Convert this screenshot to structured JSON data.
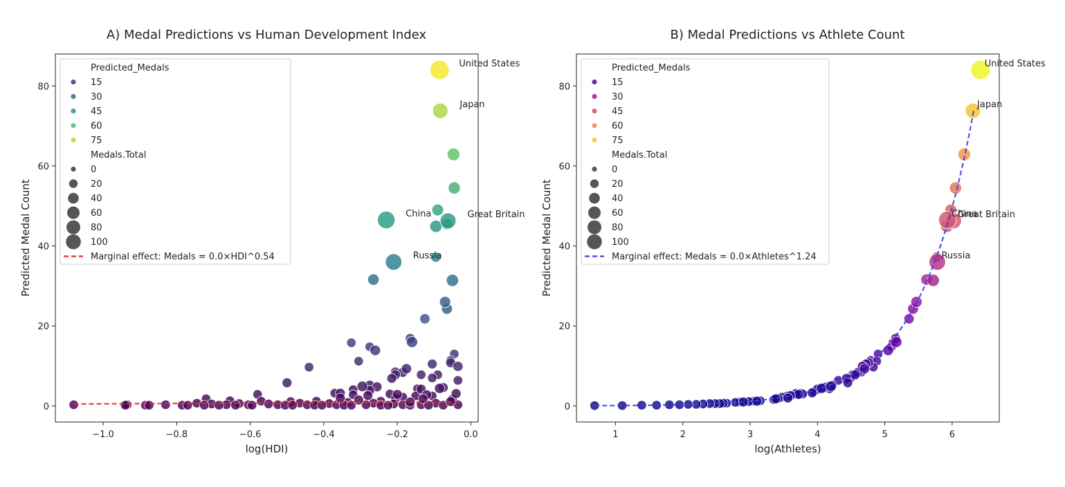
{
  "chart_data": [
    {
      "type": "scatter",
      "title": "A) Medal Predictions vs Human Development Index",
      "xlabel": "log(HDI)",
      "ylabel": "Predicted Medal Count",
      "xlim": [
        -1.13,
        0.02
      ],
      "ylim": [
        -4,
        88
      ],
      "x_ticks": [
        -1.0,
        -0.8,
        -0.6,
        -0.4,
        -0.2,
        0.0
      ],
      "x_tick_labels": [
        "−1.0",
        "−0.8",
        "−0.6",
        "−0.4",
        "−0.2",
        "0.0"
      ],
      "y_ticks": [
        0,
        20,
        40,
        60,
        80
      ],
      "y_tick_labels": [
        "0",
        "20",
        "40",
        "60",
        "80"
      ],
      "palette": "viridis",
      "legend": {
        "placement": "upper-left",
        "hue_title": "Predicted_Medals",
        "hue_levels": [
          15,
          30,
          45,
          60,
          75
        ],
        "hue_labels": [
          "15",
          "30",
          "45",
          "60",
          "75"
        ],
        "size_title": "Medals.Total",
        "size_levels": [
          0,
          20,
          40,
          60,
          80,
          100
        ],
        "size_labels": [
          "0",
          "20",
          "40",
          "60",
          "80",
          "100"
        ],
        "fit_label": "Marginal effect: Medals = 0.0×HDI^0.54"
      },
      "fit": {
        "style": "dashed",
        "color": "#e03030",
        "x": [
          -1.08,
          -0.03
        ],
        "y": [
          0.5,
          1.0
        ]
      },
      "labeled_points": [
        {
          "name": "United States",
          "x": -0.085,
          "y": 84.0,
          "size": 113
        },
        {
          "name": "Japan",
          "x": -0.083,
          "y": 73.8,
          "size": 58
        },
        {
          "name": "China",
          "x": -0.23,
          "y": 46.5,
          "size": 88
        },
        {
          "name": "Great Britain",
          "x": -0.062,
          "y": 46.3,
          "size": 65
        },
        {
          "name": "Russia",
          "x": -0.21,
          "y": 36.0,
          "size": 71
        }
      ],
      "points": [
        {
          "x": -0.047,
          "y": 62.9,
          "size": 30
        },
        {
          "x": -0.045,
          "y": 54.5,
          "size": 25
        },
        {
          "x": -0.09,
          "y": 49.0,
          "size": 22
        },
        {
          "x": -0.095,
          "y": 44.9,
          "size": 26
        },
        {
          "x": -0.065,
          "y": 45.5,
          "size": 20
        },
        {
          "x": -0.095,
          "y": 37.2,
          "size": 12
        },
        {
          "x": -0.265,
          "y": 31.6,
          "size": 20
        },
        {
          "x": -0.05,
          "y": 31.4,
          "size": 26
        },
        {
          "x": -0.07,
          "y": 26.0,
          "size": 18
        },
        {
          "x": -0.065,
          "y": 24.3,
          "size": 16
        },
        {
          "x": -0.125,
          "y": 21.8,
          "size": 12
        },
        {
          "x": -0.165,
          "y": 16.9,
          "size": 10
        },
        {
          "x": -0.16,
          "y": 16.0,
          "size": 18
        },
        {
          "x": -0.325,
          "y": 15.8,
          "size": 8
        },
        {
          "x": -0.275,
          "y": 14.8,
          "size": 8
        },
        {
          "x": -0.26,
          "y": 13.9,
          "size": 14
        },
        {
          "x": -0.045,
          "y": 13.0,
          "size": 8
        },
        {
          "x": -0.055,
          "y": 11.4,
          "size": 8
        },
        {
          "x": -0.305,
          "y": 11.2,
          "size": 8
        },
        {
          "x": -0.055,
          "y": 10.8,
          "size": 10
        },
        {
          "x": -0.105,
          "y": 10.5,
          "size": 10
        },
        {
          "x": -0.035,
          "y": 9.9,
          "size": 12
        },
        {
          "x": -0.44,
          "y": 9.7,
          "size": 8
        },
        {
          "x": -0.175,
          "y": 9.3,
          "size": 12
        },
        {
          "x": -0.205,
          "y": 8.5,
          "size": 10
        },
        {
          "x": -0.185,
          "y": 8.4,
          "size": 10
        },
        {
          "x": -0.205,
          "y": 7.8,
          "size": 10
        },
        {
          "x": -0.135,
          "y": 7.8,
          "size": 8
        },
        {
          "x": -0.09,
          "y": 7.8,
          "size": 8
        },
        {
          "x": -0.105,
          "y": 7.0,
          "size": 8
        },
        {
          "x": -0.215,
          "y": 6.9,
          "size": 10
        },
        {
          "x": -0.035,
          "y": 6.4,
          "size": 8
        },
        {
          "x": -0.5,
          "y": 5.8,
          "size": 10
        },
        {
          "x": -0.275,
          "y": 5.2,
          "size": 10
        },
        {
          "x": -0.295,
          "y": 4.9,
          "size": 14
        },
        {
          "x": -0.255,
          "y": 4.8,
          "size": 10
        },
        {
          "x": -0.075,
          "y": 4.6,
          "size": 10
        },
        {
          "x": -0.085,
          "y": 4.4,
          "size": 12
        },
        {
          "x": -0.145,
          "y": 4.3,
          "size": 8
        },
        {
          "x": -0.135,
          "y": 4.2,
          "size": 10
        },
        {
          "x": -0.32,
          "y": 4.1,
          "size": 8
        },
        {
          "x": -0.275,
          "y": 3.9,
          "size": 10
        },
        {
          "x": -0.37,
          "y": 3.2,
          "size": 8
        },
        {
          "x": -0.355,
          "y": 3.2,
          "size": 10
        },
        {
          "x": -0.04,
          "y": 3.1,
          "size": 10
        },
        {
          "x": -0.22,
          "y": 3.0,
          "size": 8
        },
        {
          "x": -0.58,
          "y": 2.9,
          "size": 8
        },
        {
          "x": -0.2,
          "y": 2.9,
          "size": 10
        },
        {
          "x": -0.32,
          "y": 2.8,
          "size": 8
        },
        {
          "x": -0.12,
          "y": 2.8,
          "size": 10
        },
        {
          "x": -0.28,
          "y": 2.6,
          "size": 10
        },
        {
          "x": -0.15,
          "y": 2.5,
          "size": 8
        },
        {
          "x": -0.105,
          "y": 2.5,
          "size": 8
        },
        {
          "x": -0.185,
          "y": 2.2,
          "size": 8
        },
        {
          "x": -0.355,
          "y": 2.0,
          "size": 10
        },
        {
          "x": -0.205,
          "y": 1.9,
          "size": 8
        },
        {
          "x": -0.13,
          "y": 1.8,
          "size": 10
        },
        {
          "x": -0.72,
          "y": 1.8,
          "size": 8
        },
        {
          "x": -0.05,
          "y": 1.7,
          "size": 8
        },
        {
          "x": -0.305,
          "y": 1.5,
          "size": 10
        },
        {
          "x": -0.655,
          "y": 1.3,
          "size": 8
        },
        {
          "x": -0.57,
          "y": 1.2,
          "size": 8
        },
        {
          "x": -0.42,
          "y": 1.2,
          "size": 8
        },
        {
          "x": -0.245,
          "y": 1.2,
          "size": 8
        },
        {
          "x": -0.49,
          "y": 1.1,
          "size": 8
        },
        {
          "x": -0.055,
          "y": 1.1,
          "size": 10
        },
        {
          "x": -0.165,
          "y": 1.0,
          "size": 10
        },
        {
          "x": -0.335,
          "y": 0.9,
          "size": 8
        },
        {
          "x": -0.745,
          "y": 0.7,
          "size": 8
        },
        {
          "x": -0.465,
          "y": 0.7,
          "size": 8
        },
        {
          "x": -0.265,
          "y": 0.7,
          "size": 8
        },
        {
          "x": -0.095,
          "y": 0.7,
          "size": 8
        },
        {
          "x": -0.63,
          "y": 0.6,
          "size": 8
        },
        {
          "x": -0.385,
          "y": 0.6,
          "size": 8
        },
        {
          "x": -0.705,
          "y": 0.5,
          "size": 8
        },
        {
          "x": -0.55,
          "y": 0.5,
          "size": 8
        },
        {
          "x": -0.21,
          "y": 0.5,
          "size": 8
        },
        {
          "x": -1.08,
          "y": 0.3,
          "size": 8
        },
        {
          "x": -0.935,
          "y": 0.3,
          "size": 8
        },
        {
          "x": -0.83,
          "y": 0.3,
          "size": 8
        },
        {
          "x": -0.665,
          "y": 0.3,
          "size": 8
        },
        {
          "x": -0.605,
          "y": 0.3,
          "size": 8
        },
        {
          "x": -0.525,
          "y": 0.3,
          "size": 8
        },
        {
          "x": -0.445,
          "y": 0.3,
          "size": 8
        },
        {
          "x": -0.365,
          "y": 0.3,
          "size": 8
        },
        {
          "x": -0.285,
          "y": 0.3,
          "size": 8
        },
        {
          "x": -0.185,
          "y": 0.3,
          "size": 8
        },
        {
          "x": -0.135,
          "y": 0.3,
          "size": 8
        },
        {
          "x": -0.035,
          "y": 0.3,
          "size": 8
        },
        {
          "x": -0.94,
          "y": 0.2,
          "size": 8
        },
        {
          "x": -0.885,
          "y": 0.2,
          "size": 8
        },
        {
          "x": -0.785,
          "y": 0.2,
          "size": 8
        },
        {
          "x": -0.725,
          "y": 0.2,
          "size": 8
        },
        {
          "x": -0.685,
          "y": 0.2,
          "size": 8
        },
        {
          "x": -0.64,
          "y": 0.2,
          "size": 8
        },
        {
          "x": -0.595,
          "y": 0.2,
          "size": 8
        },
        {
          "x": -0.505,
          "y": 0.2,
          "size": 8
        },
        {
          "x": -0.485,
          "y": 0.2,
          "size": 8
        },
        {
          "x": -0.425,
          "y": 0.2,
          "size": 8
        },
        {
          "x": -0.405,
          "y": 0.2,
          "size": 8
        },
        {
          "x": -0.345,
          "y": 0.2,
          "size": 8
        },
        {
          "x": -0.325,
          "y": 0.2,
          "size": 8
        },
        {
          "x": -0.245,
          "y": 0.2,
          "size": 8
        },
        {
          "x": -0.225,
          "y": 0.2,
          "size": 8
        },
        {
          "x": -0.165,
          "y": 0.2,
          "size": 8
        },
        {
          "x": -0.115,
          "y": 0.2,
          "size": 8
        },
        {
          "x": -0.075,
          "y": 0.2,
          "size": 8
        },
        {
          "x": -0.875,
          "y": 0.2,
          "size": 8
        },
        {
          "x": -0.77,
          "y": 0.2,
          "size": 8
        }
      ]
    },
    {
      "type": "scatter",
      "title": "B) Medal Predictions vs Athlete Count",
      "xlabel": "log(Athletes)",
      "ylabel": "Predicted Medal Count",
      "xlim": [
        0.42,
        6.7
      ],
      "ylim": [
        -4,
        88
      ],
      "x_ticks": [
        1,
        2,
        3,
        4,
        5,
        6
      ],
      "x_tick_labels": [
        "1",
        "2",
        "3",
        "4",
        "5",
        "6"
      ],
      "y_ticks": [
        0,
        20,
        40,
        60,
        80
      ],
      "y_tick_labels": [
        "0",
        "20",
        "40",
        "60",
        "80"
      ],
      "palette": "plasma",
      "legend": {
        "placement": "upper-left",
        "hue_title": "Predicted_Medals",
        "hue_levels": [
          15,
          30,
          45,
          60,
          75
        ],
        "hue_labels": [
          "15",
          "30",
          "45",
          "60",
          "75"
        ],
        "size_title": "Medals.Total",
        "size_levels": [
          0,
          20,
          40,
          60,
          80,
          100
        ],
        "size_labels": [
          "0",
          "20",
          "40",
          "60",
          "80",
          "100"
        ],
        "fit_label": "Marginal effect: Medals = 0.0×Athletes^1.24"
      },
      "fit": {
        "style": "dashed",
        "color": "#4040e0",
        "exponent": 1.24,
        "x_range": [
          0.69,
          6.32
        ],
        "y_end": 73.8
      },
      "labeled_points": [
        {
          "name": "United States",
          "x": 6.42,
          "y": 84.0,
          "size": 113
        },
        {
          "name": "Japan",
          "x": 6.31,
          "y": 73.8,
          "size": 58
        },
        {
          "name": "China",
          "x": 5.93,
          "y": 46.5,
          "size": 88
        },
        {
          "name": "Great Britain",
          "x": 6.02,
          "y": 46.3,
          "size": 65
        },
        {
          "name": "Russia",
          "x": 5.78,
          "y": 36.0,
          "size": 71
        }
      ],
      "points": [
        {
          "x": 6.18,
          "y": 62.9,
          "size": 30
        },
        {
          "x": 6.05,
          "y": 54.5,
          "size": 25
        },
        {
          "x": 5.98,
          "y": 49.0,
          "size": 22
        },
        {
          "x": 5.92,
          "y": 44.9,
          "size": 26
        },
        {
          "x": 5.77,
          "y": 37.2,
          "size": 12
        },
        {
          "x": 5.62,
          "y": 31.6,
          "size": 20
        },
        {
          "x": 5.72,
          "y": 31.4,
          "size": 26
        },
        {
          "x": 5.47,
          "y": 26.0,
          "size": 18
        },
        {
          "x": 5.42,
          "y": 24.3,
          "size": 16
        },
        {
          "x": 5.36,
          "y": 21.8,
          "size": 12
        },
        {
          "x": 5.16,
          "y": 16.9,
          "size": 10
        },
        {
          "x": 5.17,
          "y": 16.0,
          "size": 18
        },
        {
          "x": 5.12,
          "y": 15.8,
          "size": 8
        },
        {
          "x": 5.1,
          "y": 14.8,
          "size": 8
        },
        {
          "x": 5.05,
          "y": 13.9,
          "size": 14
        },
        {
          "x": 4.9,
          "y": 13.0,
          "size": 8
        },
        {
          "x": 4.79,
          "y": 11.4,
          "size": 8
        },
        {
          "x": 4.88,
          "y": 11.2,
          "size": 8
        },
        {
          "x": 4.76,
          "y": 10.8,
          "size": 10
        },
        {
          "x": 4.72,
          "y": 10.5,
          "size": 10
        },
        {
          "x": 4.67,
          "y": 9.9,
          "size": 12
        },
        {
          "x": 4.83,
          "y": 9.7,
          "size": 8
        },
        {
          "x": 4.7,
          "y": 9.3,
          "size": 12
        },
        {
          "x": 4.65,
          "y": 8.5,
          "size": 10
        },
        {
          "x": 4.6,
          "y": 8.4,
          "size": 10
        },
        {
          "x": 4.56,
          "y": 7.8,
          "size": 10
        },
        {
          "x": 4.52,
          "y": 7.8,
          "size": 8
        },
        {
          "x": 4.49,
          "y": 7.0,
          "size": 8
        },
        {
          "x": 4.43,
          "y": 6.9,
          "size": 10
        },
        {
          "x": 4.31,
          "y": 6.4,
          "size": 8
        },
        {
          "x": 4.45,
          "y": 5.8,
          "size": 10
        },
        {
          "x": 4.22,
          "y": 5.2,
          "size": 10
        },
        {
          "x": 4.2,
          "y": 4.9,
          "size": 14
        },
        {
          "x": 4.12,
          "y": 4.8,
          "size": 10
        },
        {
          "x": 4.1,
          "y": 4.6,
          "size": 10
        },
        {
          "x": 4.06,
          "y": 4.4,
          "size": 12
        },
        {
          "x": 4.18,
          "y": 4.3,
          "size": 8
        },
        {
          "x": 4.0,
          "y": 4.2,
          "size": 10
        },
        {
          "x": 3.95,
          "y": 3.6,
          "size": 8
        },
        {
          "x": 3.92,
          "y": 3.3,
          "size": 10
        },
        {
          "x": 3.75,
          "y": 3.2,
          "size": 8
        },
        {
          "x": 3.68,
          "y": 3.1,
          "size": 10
        },
        {
          "x": 3.78,
          "y": 3.0,
          "size": 8
        },
        {
          "x": 3.72,
          "y": 2.9,
          "size": 10
        },
        {
          "x": 3.7,
          "y": 2.8,
          "size": 8
        },
        {
          "x": 3.6,
          "y": 2.6,
          "size": 10
        },
        {
          "x": 3.55,
          "y": 2.5,
          "size": 8
        },
        {
          "x": 3.47,
          "y": 2.2,
          "size": 8
        },
        {
          "x": 3.56,
          "y": 2.0,
          "size": 10
        },
        {
          "x": 3.42,
          "y": 1.9,
          "size": 8
        },
        {
          "x": 3.38,
          "y": 1.8,
          "size": 10
        },
        {
          "x": 3.35,
          "y": 1.6,
          "size": 8
        },
        {
          "x": 3.15,
          "y": 1.3,
          "size": 8
        },
        {
          "x": 3.1,
          "y": 1.2,
          "size": 10
        },
        {
          "x": 3.05,
          "y": 1.2,
          "size": 8
        },
        {
          "x": 2.98,
          "y": 1.1,
          "size": 8
        },
        {
          "x": 2.9,
          "y": 1.0,
          "size": 10
        },
        {
          "x": 2.85,
          "y": 1.0,
          "size": 8
        },
        {
          "x": 2.78,
          "y": 0.9,
          "size": 8
        },
        {
          "x": 2.65,
          "y": 0.7,
          "size": 8
        },
        {
          "x": 2.6,
          "y": 0.7,
          "size": 8
        },
        {
          "x": 2.55,
          "y": 0.6,
          "size": 8
        },
        {
          "x": 2.48,
          "y": 0.6,
          "size": 8
        },
        {
          "x": 2.4,
          "y": 0.6,
          "size": 8
        },
        {
          "x": 2.3,
          "y": 0.5,
          "size": 8
        },
        {
          "x": 2.2,
          "y": 0.4,
          "size": 8
        },
        {
          "x": 2.08,
          "y": 0.4,
          "size": 8
        },
        {
          "x": 1.95,
          "y": 0.3,
          "size": 8
        },
        {
          "x": 1.8,
          "y": 0.3,
          "size": 8
        },
        {
          "x": 1.61,
          "y": 0.2,
          "size": 8
        },
        {
          "x": 1.39,
          "y": 0.2,
          "size": 8
        },
        {
          "x": 1.1,
          "y": 0.1,
          "size": 8
        },
        {
          "x": 0.69,
          "y": 0.1,
          "size": 8
        }
      ]
    }
  ]
}
